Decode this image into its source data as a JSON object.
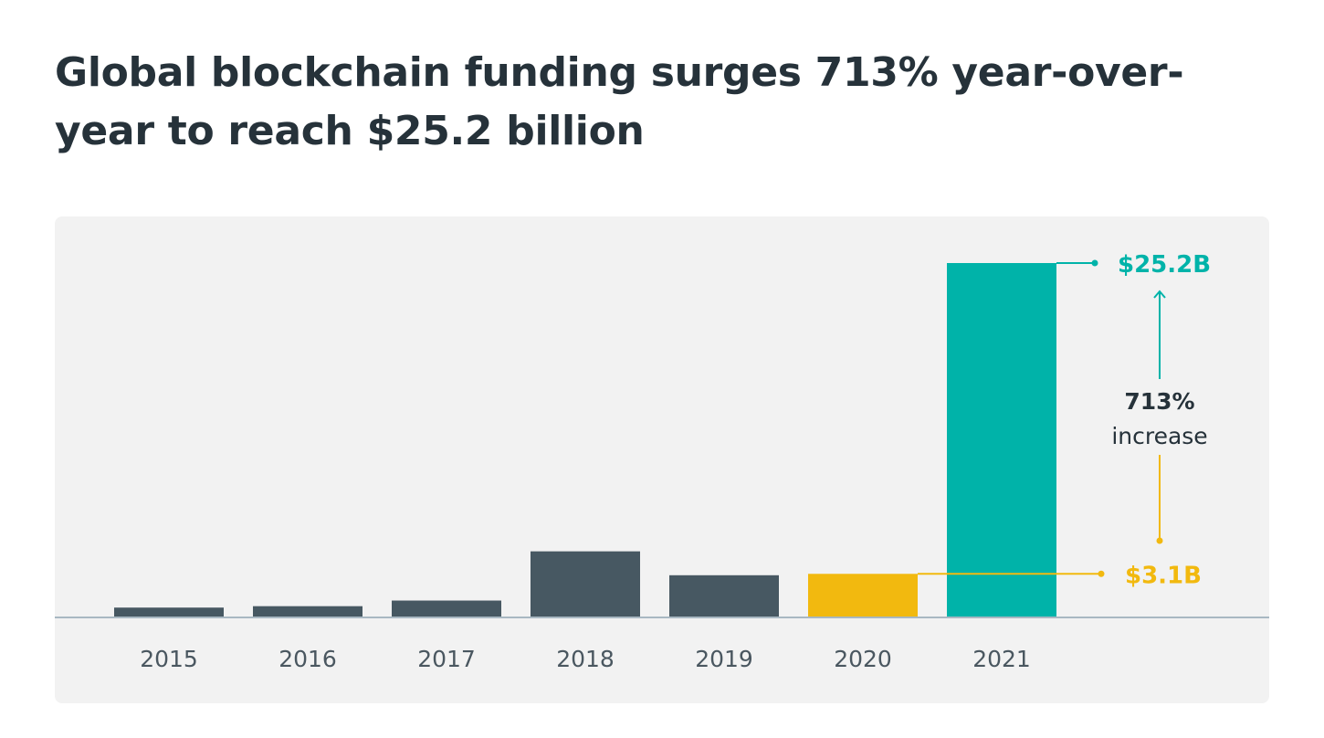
{
  "title": "Global blockchain funding surges 713% year-over-year to reach $25.2 billion",
  "chart_data": {
    "type": "bar",
    "title": "Global blockchain funding surges 713% year-over-year to reach $25.2 billion",
    "categories": [
      "2015",
      "2016",
      "2017",
      "2018",
      "2019",
      "2020",
      "2021"
    ],
    "values": [
      0.7,
      0.8,
      1.2,
      4.7,
      3.0,
      3.1,
      25.2
    ],
    "unit": "$B",
    "ylim": [
      0,
      25.2
    ],
    "grid": false,
    "colors": {
      "default": "#475862",
      "highlight_prior": "#f2b90f",
      "highlight_current": "#00b3a9",
      "axis": "#a9b8c2"
    },
    "highlights": {
      "2020": "highlight_prior",
      "2021": "highlight_current"
    },
    "annotations": {
      "current_label": "$25.2B",
      "prior_label": "$3.1B",
      "change_value": "713%",
      "change_text": "increase"
    }
  }
}
